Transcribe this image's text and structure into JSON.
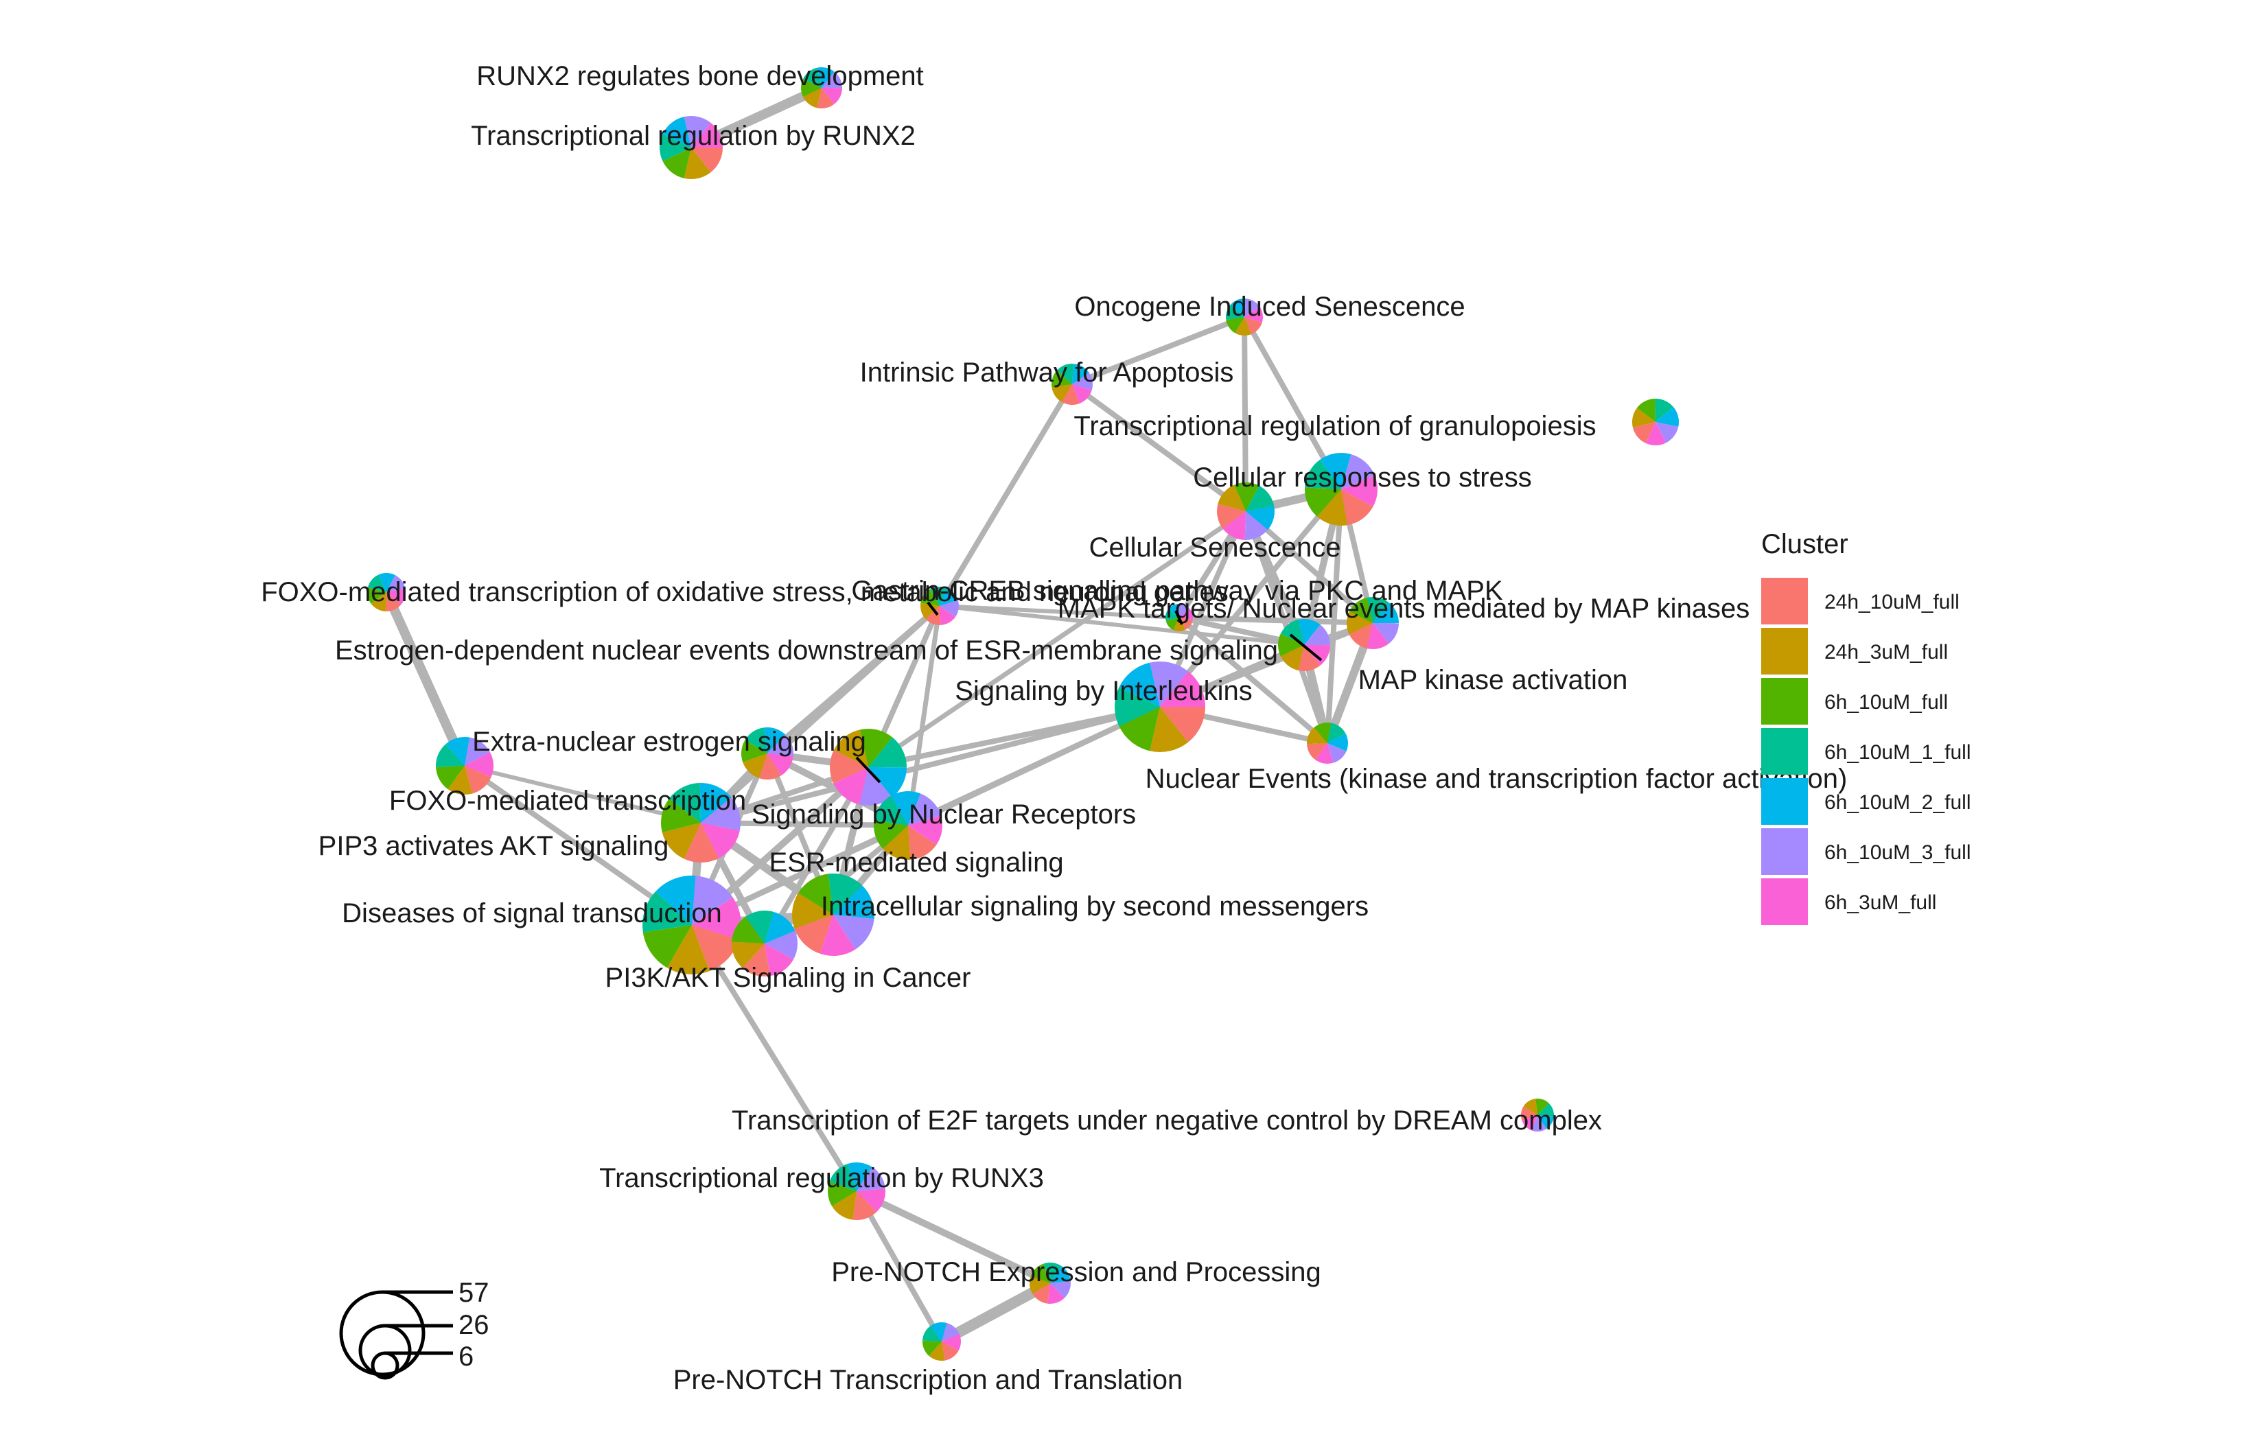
{
  "legend": {
    "title": "Cluster",
    "items": [
      {
        "label": "24h_10uM_full",
        "color": "#F8766D"
      },
      {
        "label": "24h_3uM_full",
        "color": "#C49A00"
      },
      {
        "label": "6h_10uM_full",
        "color": "#53B400"
      },
      {
        "label": "6h_10uM_1_full",
        "color": "#00C094"
      },
      {
        "label": "6h_10uM_2_full",
        "color": "#00B6EB"
      },
      {
        "label": "6h_10uM_3_full",
        "color": "#A58AFF"
      },
      {
        "label": "6h_3uM_full",
        "color": "#FB61D7"
      }
    ]
  },
  "size_legend": {
    "values": [
      "57",
      "26",
      "6"
    ]
  },
  "colors": {
    "edge": "#b3b3b3",
    "node_border": "#ffffff"
  },
  "nodes": [
    {
      "id": "runx2_bone",
      "label": "RUNX2 regulates bone development",
      "slices": [
        1,
        1,
        1,
        1,
        1,
        1,
        1
      ]
    },
    {
      "id": "runx2_tr",
      "label": "Transcriptional regulation by RUNX2",
      "slices": [
        1,
        1,
        1,
        1,
        1,
        1,
        1
      ]
    },
    {
      "id": "oncogene",
      "label": "Oncogene Induced Senescence",
      "slices": [
        1,
        1,
        1,
        1,
        1,
        1,
        1
      ]
    },
    {
      "id": "intrinsic",
      "label": "Intrinsic Pathway for Apoptosis",
      "slices": [
        1,
        1,
        1,
        1,
        1,
        1,
        1
      ]
    },
    {
      "id": "granulo",
      "label": "Transcriptional regulation of granulopoiesis",
      "slices": [
        1,
        1,
        1,
        1,
        1,
        1,
        1
      ]
    },
    {
      "id": "cell_stress",
      "label": "Cellular responses to stress",
      "slices": [
        1,
        1,
        1,
        1,
        1,
        1,
        1
      ]
    },
    {
      "id": "senescence",
      "label": "Cellular Senescence",
      "slices": [
        1,
        1,
        1,
        1,
        1,
        1,
        1
      ]
    },
    {
      "id": "foxo_oxid",
      "label": "FOXO-mediated transcription of oxidative stress, metabolic and neuronal genes",
      "slices": [
        1,
        1,
        1,
        1,
        1,
        1,
        1
      ]
    },
    {
      "id": "creb",
      "label": "Gastrin-CREB signalling pathway via PKC and MAPK",
      "slices": [
        1,
        1,
        1,
        1,
        1,
        1,
        1
      ]
    },
    {
      "id": "mapk_targets",
      "label": "MAPK targets/ Nuclear events mediated by MAP kinases",
      "slices": [
        1,
        1,
        1,
        1,
        1,
        1,
        1
      ]
    },
    {
      "id": "estro_dep",
      "label": "Estrogen-dependent nuclear events downstream of ESR-membrane signaling",
      "slices": [
        1,
        1,
        1,
        1,
        1,
        1,
        1
      ]
    },
    {
      "id": "map_kin_act",
      "label": "MAP kinase activation",
      "slices": [
        1,
        1,
        1,
        1,
        1,
        1,
        1
      ]
    },
    {
      "id": "interleukins",
      "label": "Signaling by Interleukins",
      "slices": [
        1,
        1,
        1,
        1,
        1,
        1,
        1
      ]
    },
    {
      "id": "extra_nuc",
      "label": "Extra-nuclear estrogen signaling",
      "slices": [
        1,
        1,
        1,
        1,
        1,
        1,
        1
      ]
    },
    {
      "id": "nuc_events",
      "label": "Nuclear Events (kinase and transcription factor activation)",
      "slices": [
        1,
        1,
        1,
        1,
        1,
        1,
        1
      ]
    },
    {
      "id": "foxo",
      "label": "FOXO-mediated transcription",
      "slices": [
        1,
        1,
        1,
        1,
        1,
        1,
        1
      ]
    },
    {
      "id": "nuc_rec",
      "label": "Signaling by Nuclear Receptors",
      "slices": [
        1,
        1,
        1,
        1,
        1,
        1,
        1
      ]
    },
    {
      "id": "pip3",
      "label": "PIP3 activates AKT signaling",
      "slices": [
        1,
        1,
        1,
        1,
        1,
        1,
        1
      ]
    },
    {
      "id": "esr",
      "label": "ESR-mediated signaling",
      "slices": [
        1,
        1,
        1,
        1,
        1,
        1,
        1
      ]
    },
    {
      "id": "second_msg",
      "label": "Intracellular signaling by second messengers",
      "slices": [
        1,
        1,
        1,
        1,
        1,
        1,
        1
      ]
    },
    {
      "id": "diseases",
      "label": "Diseases of signal transduction",
      "slices": [
        1,
        1,
        1,
        1,
        1,
        1,
        1
      ]
    },
    {
      "id": "pi3k_cancer",
      "label": "PI3K/AKT Signaling in Cancer",
      "slices": [
        1,
        1,
        1,
        1,
        1,
        1,
        1
      ]
    },
    {
      "id": "e2f",
      "label": "Transcription of E2F targets under negative control by DREAM complex",
      "slices": [
        1,
        1,
        1,
        1,
        1,
        1,
        1
      ]
    },
    {
      "id": "runx3",
      "label": "Transcriptional regulation by RUNX3",
      "slices": [
        1,
        1,
        1,
        1,
        1,
        1,
        1
      ]
    },
    {
      "id": "notch_exp",
      "label": "Pre-NOTCH Expression and Processing",
      "slices": [
        1,
        1,
        1,
        1,
        1,
        1,
        1
      ]
    },
    {
      "id": "notch_tr",
      "label": "Pre-NOTCH Transcription and Translation",
      "slices": [
        1,
        1,
        1,
        1,
        1,
        1,
        1
      ]
    }
  ]
}
